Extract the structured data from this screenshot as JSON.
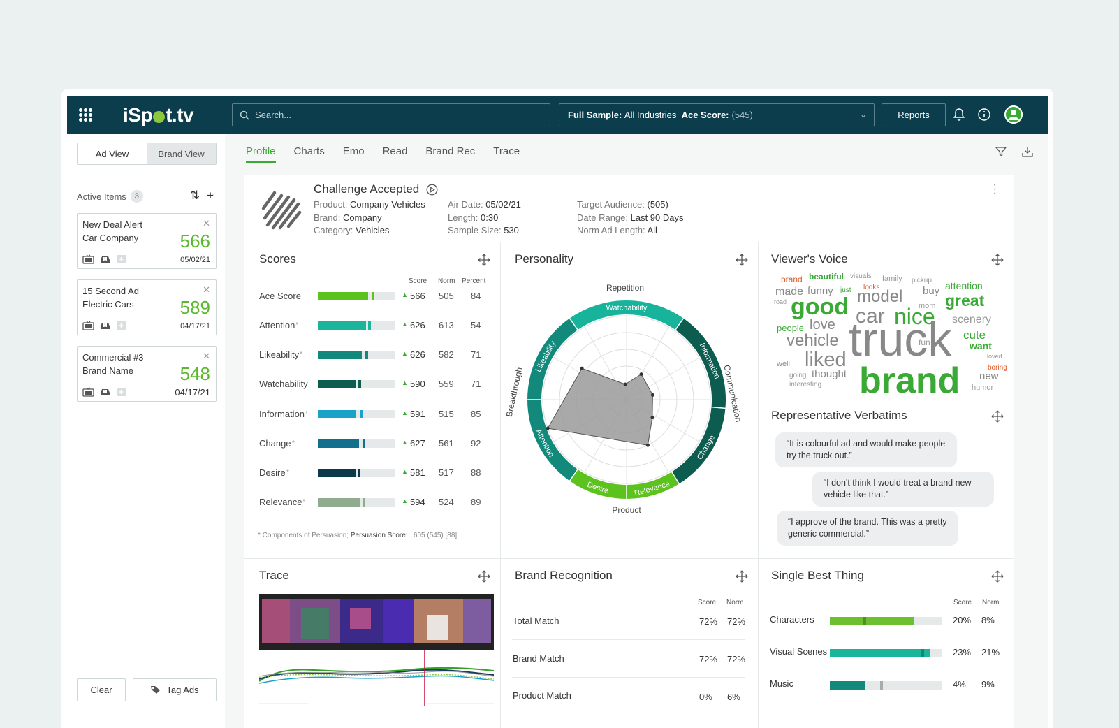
{
  "topbar": {
    "logo": "iSpot.tv",
    "search_placeholder": "Search...",
    "sample_label": "Full Sample:",
    "sample_value": "All Industries",
    "ace_label": "Ace Score:",
    "ace_value": "(545)",
    "reports": "Reports"
  },
  "left": {
    "ad_view": "Ad View",
    "brand_view": "Brand View",
    "active_items": "Active Items",
    "active_count": "3",
    "cards": [
      {
        "title": "New Deal Alert",
        "sub": "Car Company",
        "score": "566",
        "date": "05/02/21"
      },
      {
        "title": "15 Second Ad",
        "sub": "Electric Cars",
        "score": "589",
        "date": "04/17/21"
      },
      {
        "title": "Commercial #3",
        "sub": "Brand Name",
        "score": "548",
        "date": "04/17/21"
      }
    ],
    "clear": "Clear",
    "tag_ads": "Tag Ads"
  },
  "tabs": [
    "Profile",
    "Charts",
    "Emo",
    "Read",
    "Brand Rec",
    "Trace"
  ],
  "ad": {
    "title": "Challenge Accepted",
    "product_label": "Product:",
    "product": "Company Vehicles",
    "brand_label": "Brand:",
    "brand": "Company",
    "category_label": "Category:",
    "category": "Vehicles",
    "air_label": "Air Date:",
    "air": "05/02/21",
    "length_label": "Length:",
    "length": "0:30",
    "sample_label": "Sample Size:",
    "sample": "530",
    "target_label": "Target Audience:",
    "target": "(505)",
    "range_label": "Date Range:",
    "range": "Last 90 Days",
    "norm_label": "Norm Ad Length:",
    "norm": "All"
  },
  "scores": {
    "title": "Scores",
    "headers": {
      "score": "Score",
      "norm": "Norm",
      "percent": "Percent"
    },
    "rows": [
      {
        "label": "Ace Score",
        "star": "",
        "score": "566",
        "norm": "505",
        "percent": "84",
        "fill": 0.65,
        "normpos": 0.7,
        "color": "#5cc21e"
      },
      {
        "label": "Attention",
        "star": "*",
        "score": "626",
        "norm": "613",
        "percent": "54",
        "fill": 0.63,
        "normpos": 0.65,
        "color": "#1ab59a"
      },
      {
        "label": "Likeability",
        "star": "*",
        "score": "626",
        "norm": "582",
        "percent": "71",
        "fill": 0.57,
        "normpos": 0.62,
        "color": "#12897a"
      },
      {
        "label": "Watchability",
        "star": "",
        "score": "590",
        "norm": "559",
        "percent": "71",
        "fill": 0.5,
        "normpos": 0.53,
        "color": "#0d5c50"
      },
      {
        "label": "Information",
        "star": "*",
        "score": "591",
        "norm": "515",
        "percent": "85",
        "fill": 0.5,
        "normpos": 0.55,
        "color": "#19a3c6"
      },
      {
        "label": "Change",
        "star": "*",
        "score": "627",
        "norm": "561",
        "percent": "92",
        "fill": 0.54,
        "normpos": 0.58,
        "color": "#12708d"
      },
      {
        "label": "Desire",
        "star": "*",
        "score": "581",
        "norm": "517",
        "percent": "88",
        "fill": 0.5,
        "normpos": 0.52,
        "color": "#0c3a4a"
      },
      {
        "label": "Relevance",
        "star": "*",
        "score": "594",
        "norm": "524",
        "percent": "89",
        "fill": 0.55,
        "normpos": 0.58,
        "color": "#8fad8e"
      }
    ],
    "footnote_a": "* Components of Persuasion;",
    "footnote_b": "Persuasion Score:",
    "footnote_c": "605 (545) [88]"
  },
  "personality": {
    "title": "Personality",
    "outer_labels": [
      "Repetition",
      "Communication",
      "Product",
      "Breakthrough"
    ],
    "ring_labels": [
      "Watchability",
      "Information",
      "Change",
      "Relevance",
      "Desire",
      "Attention",
      "Likeability"
    ]
  },
  "voice": {
    "title": "Viewer's Voice",
    "words": [
      "brand",
      "beautiful",
      "visuals",
      "family",
      "pickup",
      "made",
      "funny",
      "just",
      "looks",
      "buy",
      "attention",
      "road",
      "good",
      "model",
      "mom",
      "great",
      "people",
      "love",
      "car",
      "nice",
      "scenery",
      "vehicle",
      "truck",
      "fun",
      "cute",
      "want",
      "well",
      "liked",
      "loved",
      "going",
      "thought",
      "brand",
      "boring",
      "new",
      "interesting",
      "humor"
    ]
  },
  "verbatims": {
    "title": "Representative Verbatims",
    "quotes": [
      "“It is colourful ad and would make people try the truck out.”",
      "“I don't think I would treat a brand new vehicle like that.”",
      "“I approve of the brand. This was a pretty generic commercial.”"
    ]
  },
  "trace": {
    "title": "Trace"
  },
  "brand_rec": {
    "title": "Brand Recognition",
    "headers": {
      "score": "Score",
      "norm": "Norm"
    },
    "rows": [
      {
        "label": "Total Match",
        "score": "72%",
        "norm": "72%"
      },
      {
        "label": "Brand Match",
        "score": "72%",
        "norm": "72%"
      },
      {
        "label": "Product Match",
        "score": "0%",
        "norm": "6%"
      }
    ]
  },
  "sbt": {
    "title": "Single Best Thing",
    "headers": {
      "score": "Score",
      "norm": "Norm"
    },
    "rows": [
      {
        "label": "Characters",
        "score": "20%",
        "norm": "8%",
        "fill": 0.75,
        "normpos": 0.3,
        "color": "#6cbf2e"
      },
      {
        "label": "Visual Scenes",
        "score": "23%",
        "norm": "21%",
        "fill": 0.9,
        "normpos": 0.82,
        "color": "#1ab59a"
      },
      {
        "label": "Music",
        "score": "4%",
        "norm": "9%",
        "fill": 0.32,
        "normpos": 0.45,
        "color": "#12897a"
      }
    ]
  }
}
